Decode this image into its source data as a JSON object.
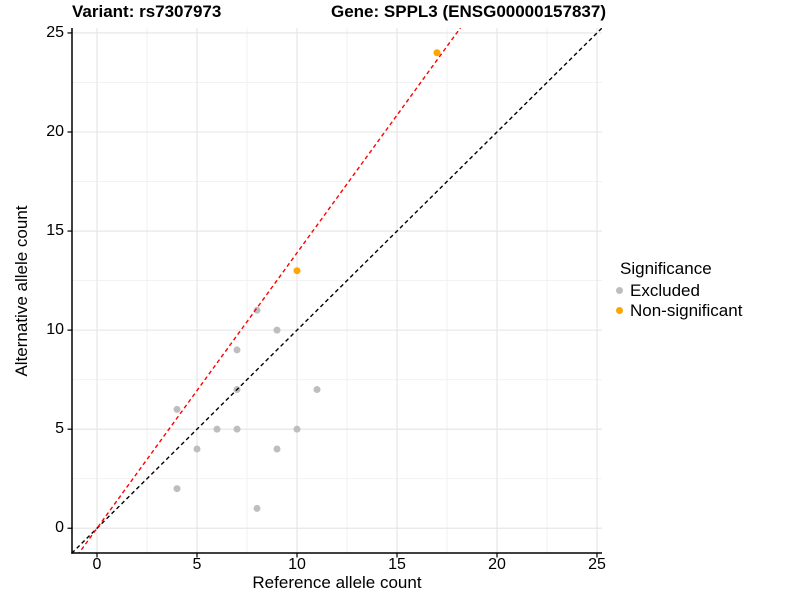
{
  "chart_data": {
    "type": "scatter",
    "title_left": "Variant: rs7307973",
    "title_right": "Gene: SPPL3 (ENSG00000157837)",
    "xlabel": "Reference allele count",
    "ylabel": "Alternative allele count",
    "xlim": [
      -1.25,
      25.25
    ],
    "ylim": [
      -1.25,
      25.25
    ],
    "x_ticks": [
      0,
      5,
      10,
      15,
      20,
      25
    ],
    "y_ticks": [
      0,
      5,
      10,
      15,
      20,
      25
    ],
    "minor_gridlines": [
      2.5,
      7.5,
      12.5,
      17.5,
      22.5
    ],
    "grid": true,
    "legend_title": "Significance",
    "legend_position": "right",
    "series": [
      {
        "name": "Excluded",
        "color": "#BEBEBE",
        "points": [
          [
            4,
            2
          ],
          [
            4,
            6
          ],
          [
            5,
            4
          ],
          [
            6,
            5
          ],
          [
            7,
            5
          ],
          [
            7,
            7
          ],
          [
            7,
            9
          ],
          [
            8,
            1
          ],
          [
            8,
            11
          ],
          [
            9,
            4
          ],
          [
            9,
            10
          ],
          [
            10,
            5
          ],
          [
            11,
            7
          ]
        ]
      },
      {
        "name": "Non-significant",
        "color": "#FFA500",
        "points": [
          [
            10,
            13
          ],
          [
            17,
            24
          ]
        ]
      }
    ],
    "lines": [
      {
        "name": "identity-line",
        "color": "#000000",
        "slope": 1,
        "intercept": 0,
        "dash": "4 3"
      },
      {
        "name": "expected-ratio-line",
        "color": "#FF0000",
        "slope": 1.39,
        "intercept": 0,
        "dash": "4 3"
      }
    ],
    "colors": {
      "grid_major": "#e4e4e4",
      "grid_minor": "#f1f1f1",
      "axis": "#000000",
      "background": "#ffffff"
    }
  }
}
